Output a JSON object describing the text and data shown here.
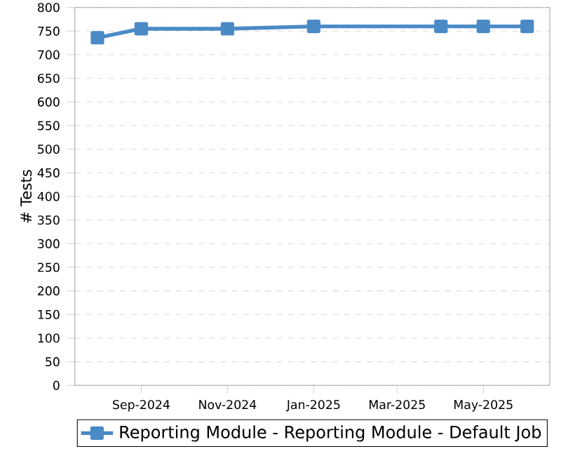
{
  "chart_data": {
    "type": "line",
    "ylabel": "# Tests",
    "x": [
      "2024-08-01",
      "2024-09-01",
      "2024-11-01",
      "2025-01-01",
      "2025-04-01",
      "2025-05-01",
      "2025-06-01"
    ],
    "series": [
      {
        "name": "Reporting Module - Reporting Module - Default Job",
        "color": "#4a8ac6",
        "values": [
          736,
          755,
          755,
          760,
          760,
          760,
          760
        ]
      }
    ],
    "xlim": [
      "2024-07-16",
      "2025-06-17"
    ],
    "xticks": [
      {
        "value": "2024-09-01",
        "label": "Sep-2024"
      },
      {
        "value": "2024-11-01",
        "label": "Nov-2024"
      },
      {
        "value": "2025-01-01",
        "label": "Jan-2025"
      },
      {
        "value": "2025-03-01",
        "label": "Mar-2025"
      },
      {
        "value": "2025-05-01",
        "label": "May-2025"
      }
    ],
    "ylim": [
      0,
      800
    ],
    "yticks": [
      0,
      50,
      100,
      150,
      200,
      250,
      300,
      350,
      400,
      450,
      500,
      550,
      600,
      650,
      700,
      750,
      800
    ],
    "grid": "y",
    "legend": "bottom",
    "marker": "square",
    "line_style": "solid"
  }
}
